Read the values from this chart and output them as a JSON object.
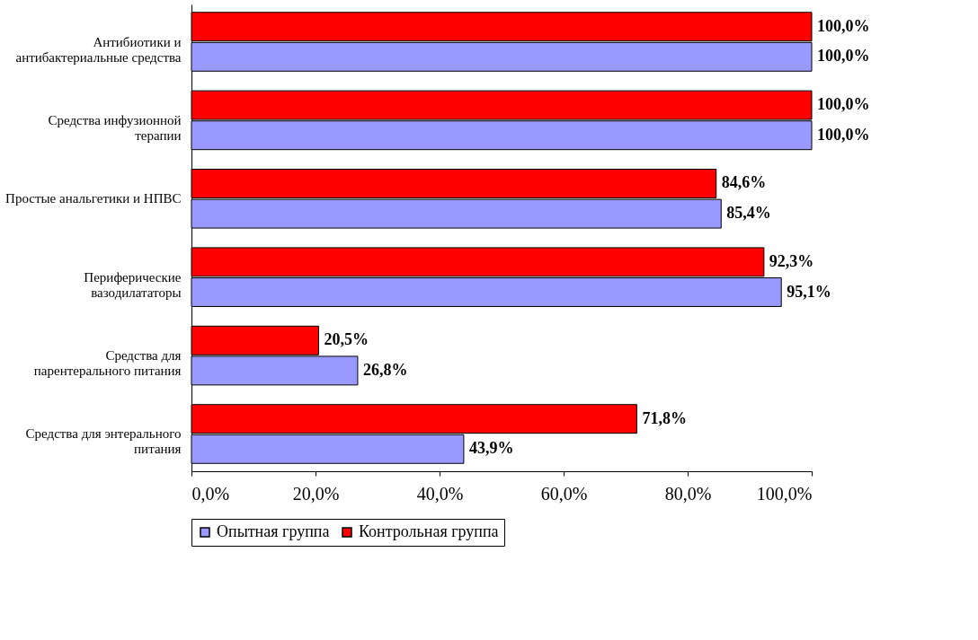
{
  "chart_data": {
    "type": "bar",
    "orientation": "horizontal",
    "categories": [
      "Антибиотики и антибактериальные средства",
      "Средства инфузионной терапии",
      "Простые анальгетики и НПВС",
      "Периферические вазодилататоры",
      "Средства для парентерального питания",
      "Средства для энтерального питания"
    ],
    "series": [
      {
        "name": "Опытная группа",
        "color": "#9999ff",
        "values": [
          100.0,
          100.0,
          85.4,
          95.1,
          26.8,
          43.9
        ],
        "value_labels": [
          "100,0%",
          "100,0%",
          "85,4%",
          "95,1%",
          "26,8%",
          "43,9%"
        ]
      },
      {
        "name": "Контрольная группа",
        "color": "#ff0000",
        "values": [
          100.0,
          100.0,
          84.6,
          92.3,
          20.5,
          71.8
        ],
        "value_labels": [
          "100,0%",
          "100,0%",
          "84,6%",
          "92,3%",
          "20,5%",
          "71,8%"
        ]
      }
    ],
    "xlim": [
      0,
      100
    ],
    "xticks": [
      {
        "value": 0,
        "label": "0,0%"
      },
      {
        "value": 20,
        "label": "20,0%"
      },
      {
        "value": 40,
        "label": "40,0%"
      },
      {
        "value": 60,
        "label": "60,0%"
      },
      {
        "value": 80,
        "label": "80,0%"
      },
      {
        "value": 100,
        "label": "100,0%"
      }
    ],
    "grid": false,
    "legend": "bottom"
  }
}
